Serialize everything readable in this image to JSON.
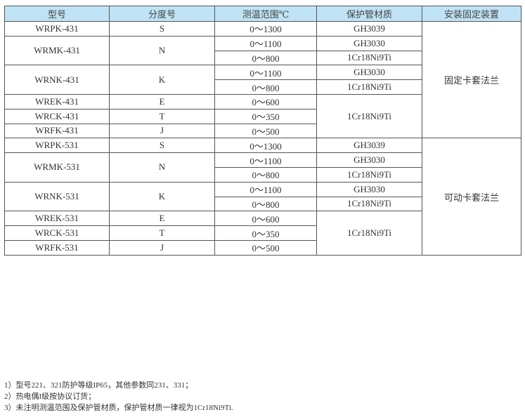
{
  "headers": [
    "型号",
    "分度号",
    "测温范围℃",
    "保护管材质",
    "安装固定装置"
  ],
  "groups": [
    {
      "mounting": "固定卡套法兰",
      "shared_material": "1Cr18Ni9Ti",
      "rows": [
        {
          "model": "WRPK-431",
          "grade": "S",
          "ranges": [
            {
              "range": "0～1300",
              "material": "GH3039"
            }
          ]
        },
        {
          "model": "WRMK-431",
          "grade": "N",
          "ranges": [
            {
              "range": "0～1100",
              "material": "GH3030"
            },
            {
              "range": "0～800",
              "material": "1Cr18Ni9Ti"
            }
          ]
        },
        {
          "model": "WRNK-431",
          "grade": "K",
          "ranges": [
            {
              "range": "0～1100",
              "material": "GH3030"
            },
            {
              "range": "0～800",
              "material": "1Cr18Ni9Ti"
            }
          ]
        },
        {
          "model": "WREK-431",
          "grade": "E",
          "ranges": [
            {
              "range": "0～600"
            }
          ]
        },
        {
          "model": "WRCK-431",
          "grade": "T",
          "ranges": [
            {
              "range": "0～350"
            }
          ]
        },
        {
          "model": "WRFK-431",
          "grade": "J",
          "ranges": [
            {
              "range": "0～500"
            }
          ]
        }
      ]
    },
    {
      "mounting": "可动卡套法兰",
      "shared_material": "1Cr18Ni9Ti",
      "rows": [
        {
          "model": "WRPK-531",
          "grade": "S",
          "ranges": [
            {
              "range": "0～1300",
              "material": "GH3039"
            }
          ]
        },
        {
          "model": "WRMK-531",
          "grade": "N",
          "ranges": [
            {
              "range": "0～1100",
              "material": "GH3030"
            },
            {
              "range": "0～800",
              "material": "1Cr18Ni9Ti"
            }
          ]
        },
        {
          "model": "WRNK-531",
          "grade": "K",
          "ranges": [
            {
              "range": "0～1100",
              "material": "GH3030"
            },
            {
              "range": "0～800",
              "material": "1Cr18Ni9Ti"
            }
          ]
        },
        {
          "model": "WREK-531",
          "grade": "E",
          "ranges": [
            {
              "range": "0～600"
            }
          ]
        },
        {
          "model": "WRCK-531",
          "grade": "T",
          "ranges": [
            {
              "range": "0～350"
            }
          ]
        },
        {
          "model": "WRFK-531",
          "grade": "J",
          "ranges": [
            {
              "range": "0～500"
            }
          ]
        }
      ]
    }
  ],
  "notes": [
    "1）型号221、321防护等级IP65，其他参数同231、331；",
    "2）热电偶I级按协议订货；",
    "3）未注明测温范围及保护管材质，保护管材质一律视为1Cr18Ni9Ti."
  ],
  "colors": {
    "header_bg": "#bfe3f5",
    "border": "#555555"
  }
}
